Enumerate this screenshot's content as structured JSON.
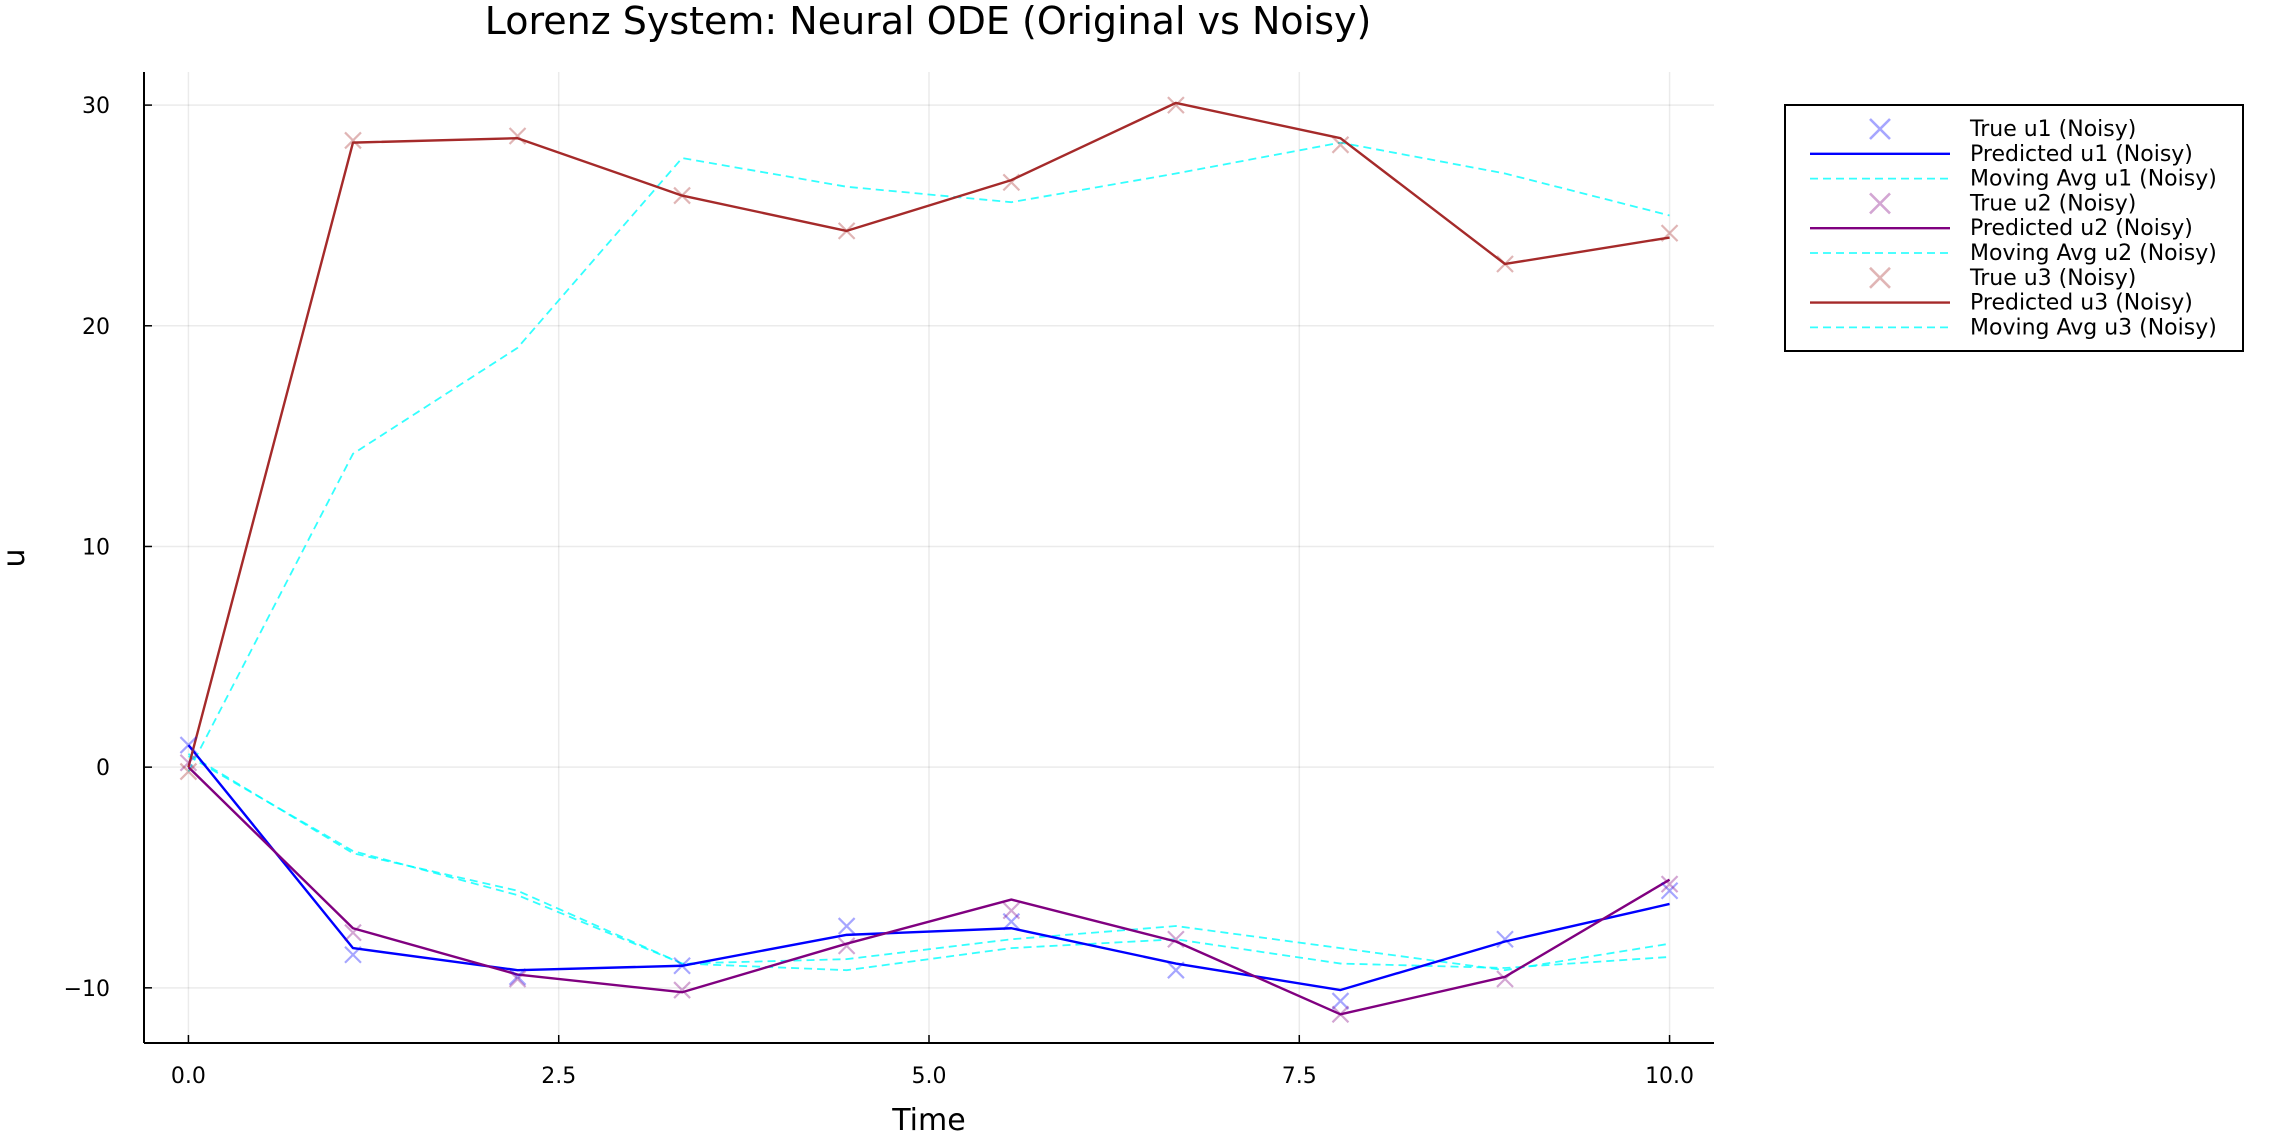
{
  "chart_data": {
    "type": "line",
    "title": "Lorenz System: Neural ODE (Original vs Noisy)",
    "xlabel": "Time",
    "ylabel": "u",
    "xlim": [
      -0.3,
      10.3
    ],
    "ylim": [
      -12.5,
      31.5
    ],
    "xticks": [
      0,
      2.5,
      5,
      7.5,
      10
    ],
    "xtick_labels": [
      "0.0",
      "2.5",
      "5.0",
      "7.5",
      "10.0"
    ],
    "yticks": [
      -10,
      0,
      10,
      20,
      30
    ],
    "ytick_labels": [
      "−10",
      "0",
      "10",
      "20",
      "30"
    ],
    "grid": true,
    "legend_position": "outer-top-right",
    "x": [
      0,
      1.111,
      2.222,
      3.333,
      4.444,
      5.556,
      6.667,
      7.778,
      8.889,
      10
    ],
    "series": [
      {
        "name": "True u1 (Noisy)",
        "kind": "scatter",
        "color": "#0000ff",
        "values": [
          1.0,
          -8.5,
          -9.5,
          -9.0,
          -7.2,
          -7.0,
          -9.2,
          -10.6,
          -7.8,
          -5.6
        ]
      },
      {
        "name": "Predicted u1 (Noisy)",
        "kind": "line",
        "color": "#0000ff",
        "values": [
          1.0,
          -8.2,
          -9.2,
          -9.0,
          -7.6,
          -7.3,
          -8.9,
          -10.1,
          -7.9,
          -6.2
        ]
      },
      {
        "name": "Moving Avg u1 (Noisy)",
        "kind": "dashed",
        "color": "#00ffff",
        "values": [
          0.5,
          -3.8,
          -5.8,
          -8.9,
          -8.7,
          -7.8,
          -7.2,
          -8.2,
          -9.2,
          -8.0
        ]
      },
      {
        "name": "True u2 (Noisy)",
        "kind": "scatter",
        "color": "#800080",
        "values": [
          0.2,
          -7.5,
          -9.6,
          -10.1,
          -8.1,
          -6.5,
          -7.8,
          -11.2,
          -9.6,
          -5.3
        ]
      },
      {
        "name": "Predicted u2 (Noisy)",
        "kind": "line",
        "color": "#800080",
        "values": [
          0.0,
          -7.3,
          -9.4,
          -10.2,
          -8.0,
          -6.0,
          -7.9,
          -11.2,
          -9.5,
          -5.1
        ]
      },
      {
        "name": "Moving Avg u2 (Noisy)",
        "kind": "dashed",
        "color": "#00ffff",
        "values": [
          0.6,
          -3.9,
          -5.6,
          -8.9,
          -9.2,
          -8.2,
          -7.8,
          -8.9,
          -9.1,
          -8.6
        ]
      },
      {
        "name": "True u3 (Noisy)",
        "kind": "scatter",
        "color": "#a52a2a",
        "values": [
          -0.2,
          28.4,
          28.6,
          25.9,
          24.3,
          26.5,
          30.0,
          28.2,
          22.8,
          24.2
        ]
      },
      {
        "name": "Predicted u3 (Noisy)",
        "kind": "line",
        "color": "#a52a2a",
        "values": [
          0.0,
          28.3,
          28.5,
          25.9,
          24.3,
          26.6,
          30.1,
          28.5,
          22.8,
          24.0
        ]
      },
      {
        "name": "Moving Avg u3 (Noisy)",
        "kind": "dashed",
        "color": "#00ffff",
        "values": [
          -0.2,
          14.2,
          19.0,
          27.6,
          26.3,
          25.6,
          26.9,
          28.3,
          26.9,
          25.0
        ]
      }
    ]
  }
}
